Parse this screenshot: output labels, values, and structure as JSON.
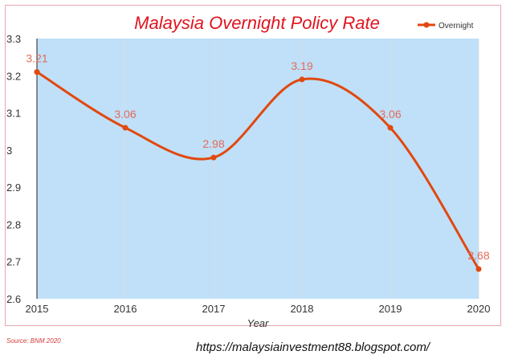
{
  "chart_data": {
    "type": "line",
    "title": "Malaysia Overnight Policy Rate",
    "xlabel": "Year",
    "ylabel": "",
    "categories": [
      "2015",
      "2016",
      "2017",
      "2018",
      "2019",
      "2020"
    ],
    "series": [
      {
        "name": "Overnight",
        "values": [
          3.21,
          3.06,
          2.98,
          3.19,
          3.06,
          2.68
        ]
      }
    ],
    "data_labels": [
      "3.21",
      "3.06",
      "2.98",
      "3.19",
      "3.06",
      "2.68"
    ],
    "ylim": [
      2.6,
      3.3
    ],
    "y_ticks": [
      "2.6",
      "2.7",
      "2.8",
      "2.9",
      "3",
      "3.1",
      "3.2",
      "3.3"
    ],
    "grid": true,
    "legend": "top-right",
    "colors": {
      "line": "#e2480f",
      "label": "#e36a5a",
      "plot_bg": "#bfe0f8",
      "title": "#e0141e"
    }
  },
  "footer": {
    "source": "Source: BNM 2020",
    "url": "https://malaysiainvestment88.blogspot.com/"
  }
}
